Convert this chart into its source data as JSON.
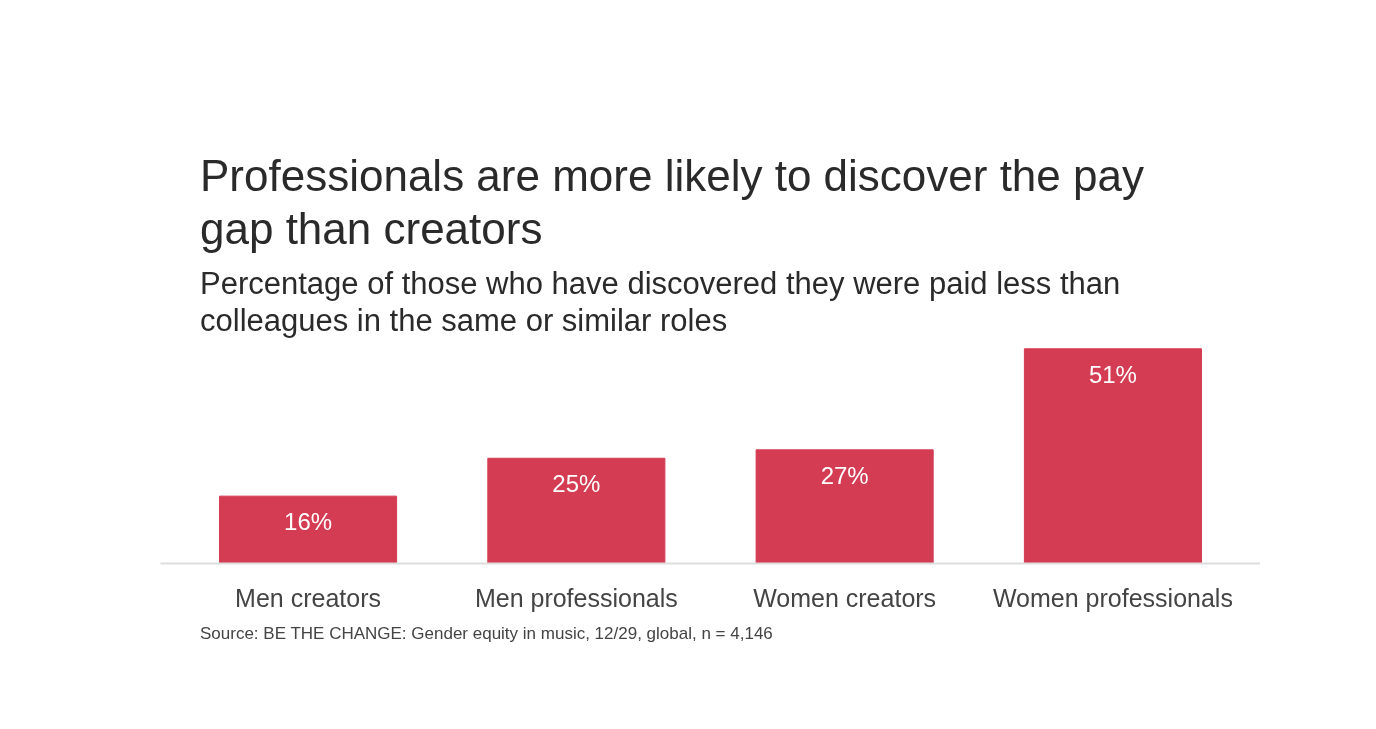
{
  "chart_data": {
    "type": "bar",
    "title": "Professionals are more likely to discover the pay gap than creators",
    "subtitle": "Percentage of those who have discovered they were paid less than colleagues in the same or similar roles",
    "categories": [
      "Men creators",
      "Men professionals",
      "Women creators",
      "Women professionals"
    ],
    "values": [
      16,
      25,
      27,
      51
    ],
    "value_labels": [
      "16%",
      "25%",
      "27%",
      "51%"
    ],
    "color": "#d43c53",
    "annotations": [
      "Source: BE THE CHANGE: Gender equity in music, 12/29, global, n = 4,146"
    ]
  }
}
